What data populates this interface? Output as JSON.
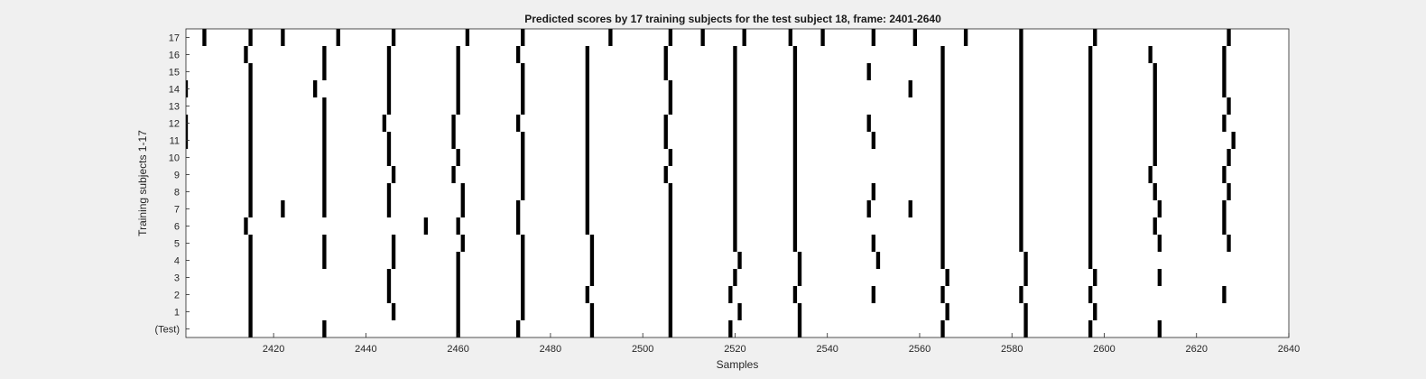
{
  "chart_data": {
    "type": "heatmap",
    "title": "Predicted scores by 17 training subjects for the test subject 18, frame: 2401-2640",
    "xlabel": "Samples",
    "ylabel": "Training subjects 1-17",
    "xlim": [
      2401,
      2640
    ],
    "x_ticks": [
      2420,
      2440,
      2460,
      2480,
      2500,
      2520,
      2540,
      2560,
      2580,
      2600,
      2620,
      2640
    ],
    "rows": [
      {
        "label": "(Test)",
        "frames": [
          2415,
          2431,
          2460,
          2473,
          2489,
          2506,
          2519,
          2534,
          2565,
          2583,
          2597,
          2612
        ]
      },
      {
        "label": "1",
        "frames": [
          2415,
          2446,
          2460,
          2474,
          2489,
          2506,
          2521,
          2534,
          2566,
          2583,
          2598
        ]
      },
      {
        "label": "2",
        "frames": [
          2415,
          2445,
          2460,
          2474,
          2488,
          2506,
          2519,
          2533,
          2550,
          2565,
          2582,
          2597,
          2626
        ]
      },
      {
        "label": "3",
        "frames": [
          2415,
          2445,
          2460,
          2474,
          2489,
          2506,
          2520,
          2534,
          2566,
          2583,
          2598,
          2612
        ]
      },
      {
        "label": "4",
        "frames": [
          2415,
          2431,
          2446,
          2460,
          2474,
          2489,
          2506,
          2521,
          2534,
          2551,
          2565,
          2583,
          2597
        ]
      },
      {
        "label": "5",
        "frames": [
          2415,
          2431,
          2446,
          2461,
          2474,
          2489,
          2506,
          2520,
          2533,
          2550,
          2565,
          2582,
          2597,
          2612,
          2627
        ]
      },
      {
        "label": "6",
        "frames": [
          2414,
          2453,
          2460,
          2473,
          2488,
          2506,
          2520,
          2533,
          2565,
          2582,
          2597,
          2611,
          2626
        ]
      },
      {
        "label": "7",
        "frames": [
          2415,
          2422,
          2431,
          2445,
          2461,
          2473,
          2488,
          2506,
          2520,
          2533,
          2549,
          2558,
          2565,
          2582,
          2597,
          2612,
          2626
        ]
      },
      {
        "label": "8",
        "frames": [
          2415,
          2431,
          2445,
          2461,
          2474,
          2488,
          2506,
          2520,
          2533,
          2550,
          2565,
          2582,
          2597,
          2611,
          2627
        ]
      },
      {
        "label": "9",
        "frames": [
          2415,
          2431,
          2446,
          2459,
          2474,
          2488,
          2505,
          2520,
          2533,
          2565,
          2582,
          2597,
          2610,
          2626
        ]
      },
      {
        "label": "10",
        "frames": [
          2415,
          2431,
          2445,
          2460,
          2474,
          2488,
          2506,
          2520,
          2533,
          2565,
          2582,
          2597,
          2611,
          2627
        ]
      },
      {
        "label": "11",
        "frames": [
          2401,
          2415,
          2431,
          2445,
          2459,
          2474,
          2488,
          2505,
          2520,
          2533,
          2550,
          2565,
          2582,
          2597,
          2611,
          2628
        ]
      },
      {
        "label": "12",
        "frames": [
          2401,
          2415,
          2431,
          2444,
          2459,
          2473,
          2488,
          2505,
          2520,
          2533,
          2549,
          2565,
          2582,
          2597,
          2611,
          2626
        ]
      },
      {
        "label": "13",
        "frames": [
          2415,
          2431,
          2445,
          2460,
          2474,
          2488,
          2506,
          2520,
          2533,
          2565,
          2582,
          2597,
          2611,
          2627
        ]
      },
      {
        "label": "14",
        "frames": [
          2401,
          2415,
          2429,
          2445,
          2460,
          2474,
          2488,
          2506,
          2520,
          2533,
          2558,
          2565,
          2582,
          2597,
          2611,
          2626
        ]
      },
      {
        "label": "15",
        "frames": [
          2415,
          2431,
          2445,
          2460,
          2474,
          2488,
          2505,
          2520,
          2533,
          2549,
          2565,
          2582,
          2597,
          2611,
          2626
        ]
      },
      {
        "label": "16",
        "frames": [
          2414,
          2431,
          2445,
          2460,
          2473,
          2488,
          2505,
          2520,
          2533,
          2565,
          2582,
          2597,
          2610,
          2626
        ]
      },
      {
        "label": "17",
        "frames": [
          2405,
          2415,
          2422,
          2434,
          2446,
          2462,
          2474,
          2493,
          2506,
          2513,
          2522,
          2532,
          2539,
          2550,
          2559,
          2570,
          2582,
          2598,
          2627
        ]
      }
    ],
    "colors": {
      "background": "#f0f0f0",
      "plot_bg": "#ffffff",
      "mark": "#000000",
      "axis": "#262626"
    },
    "grid": false,
    "legend": "none"
  }
}
